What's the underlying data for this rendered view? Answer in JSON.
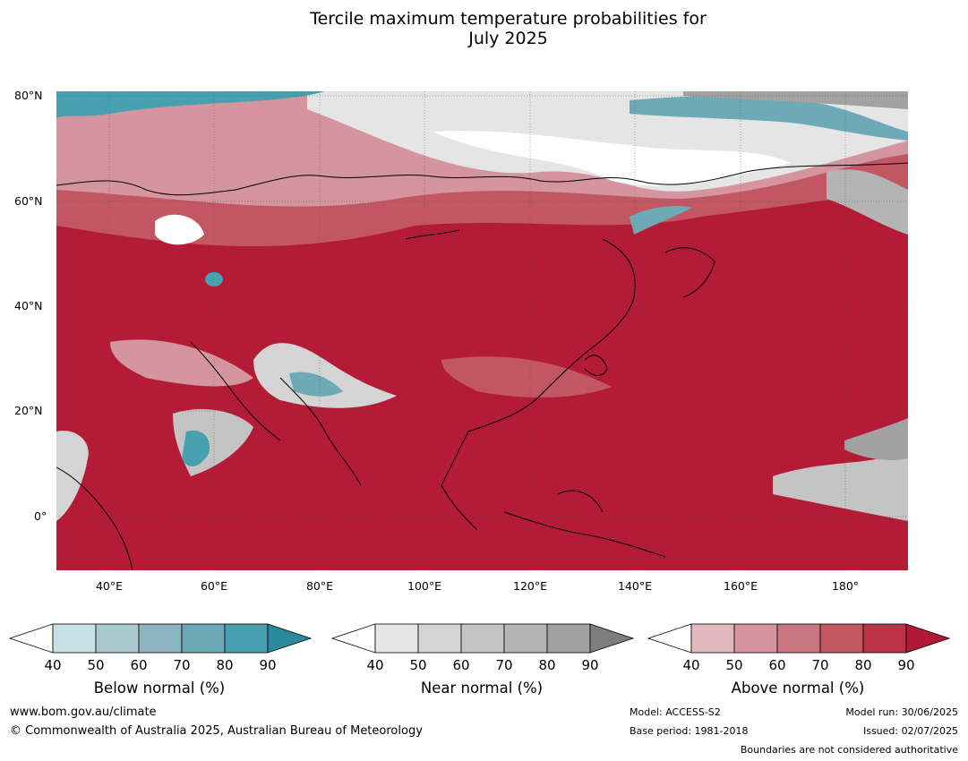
{
  "title": {
    "line1": "Tercile maximum temperature probabilities for",
    "line2": "July 2025"
  },
  "map": {
    "lat_labels": [
      "80°N",
      "60°N",
      "40°N",
      "20°N",
      "0°"
    ],
    "lon_labels": [
      "40°E",
      "60°E",
      "80°E",
      "100°E",
      "120°E",
      "140°E",
      "160°E",
      "180°"
    ]
  },
  "colorbars": [
    {
      "label": "Below normal (%)",
      "ticks": [
        "40",
        "50",
        "60",
        "70",
        "80",
        "90"
      ],
      "colors": [
        "#ffffff",
        "#c7e0e6",
        "#a9c8cf",
        "#8db5c0",
        "#6eaab5",
        "#47a0b0",
        "#2a8a9d"
      ]
    },
    {
      "label": "Near normal (%)",
      "ticks": [
        "40",
        "50",
        "60",
        "70",
        "80",
        "90"
      ],
      "colors": [
        "#ffffff",
        "#e5e5e5",
        "#d4d4d4",
        "#c4c4c4",
        "#b4b4b4",
        "#a2a2a2",
        "#7d7d7d"
      ]
    },
    {
      "label": "Above normal (%)",
      "ticks": [
        "40",
        "50",
        "60",
        "70",
        "80",
        "90"
      ],
      "colors": [
        "#ffffff",
        "#e2b7bd",
        "#d4959e",
        "#c97680",
        "#c25763",
        "#ba3347",
        "#b01a36"
      ]
    }
  ],
  "footer": {
    "website": "www.bom.gov.au/climate",
    "copyright": "© Commonwealth of Australia 2025, Australian Bureau of Meteorology",
    "model": "Model: ACCESS-S2",
    "base_period": "Base period: 1981-2018",
    "model_run": "Model run: 30/06/2025",
    "issued": "Issued: 02/07/2025",
    "disclaimer": "Boundaries are not considered authoritative"
  }
}
